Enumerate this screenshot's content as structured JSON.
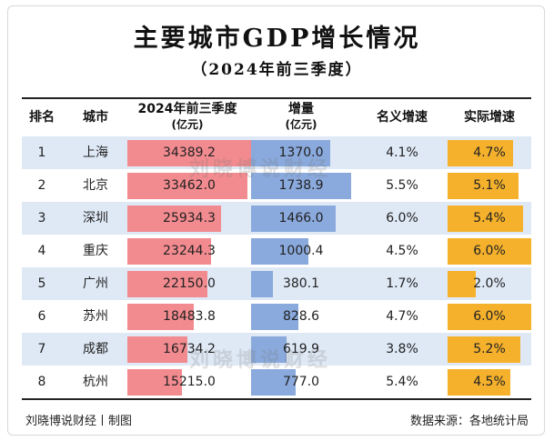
{
  "title": "主要城市GDP增长情况",
  "subtitle": "（2024年前三季度）",
  "headers": {
    "rank": "排名",
    "city": "城市",
    "gdp": "2024年前三季度",
    "gdp_unit": "(亿元)",
    "increase": "增量",
    "increase_unit": "(亿元)",
    "nominal": "名义增速",
    "real": "实际增速"
  },
  "rows": [
    {
      "rank": "1",
      "city": "上海",
      "gdp": "34389.2",
      "increase": "1370.0",
      "nominal": "4.1%",
      "real": "4.7%"
    },
    {
      "rank": "2",
      "city": "北京",
      "gdp": "33462.0",
      "increase": "1738.9",
      "nominal": "5.5%",
      "real": "5.1%"
    },
    {
      "rank": "3",
      "city": "深圳",
      "gdp": "25934.3",
      "increase": "1466.0",
      "nominal": "6.0%",
      "real": "5.4%"
    },
    {
      "rank": "4",
      "city": "重庆",
      "gdp": "23244.3",
      "increase": "1000.4",
      "nominal": "4.5%",
      "real": "6.0%"
    },
    {
      "rank": "5",
      "city": "广州",
      "gdp": "22150.0",
      "increase": "380.1",
      "nominal": "1.7%",
      "real": "2.0%"
    },
    {
      "rank": "6",
      "city": "苏州",
      "gdp": "18483.8",
      "increase": "828.6",
      "nominal": "4.7%",
      "real": "6.0%"
    },
    {
      "rank": "7",
      "city": "成都",
      "gdp": "16734.2",
      "increase": "619.9",
      "nominal": "3.8%",
      "real": "5.2%"
    },
    {
      "rank": "8",
      "city": "杭州",
      "gdp": "15215.0",
      "increase": "777.0",
      "nominal": "5.4%",
      "real": "4.5%"
    }
  ],
  "footer": {
    "credit": "刘晓博说财经丨制图",
    "source": "数据来源：各地统计局"
  },
  "watermark": "刘晓博说财经",
  "colors": {
    "gdp_bar": "#f28b8f",
    "increase_bar": "#8aa9dc",
    "real_bar": "#f5b12c",
    "alt_row": "#dfe9f6"
  }
}
